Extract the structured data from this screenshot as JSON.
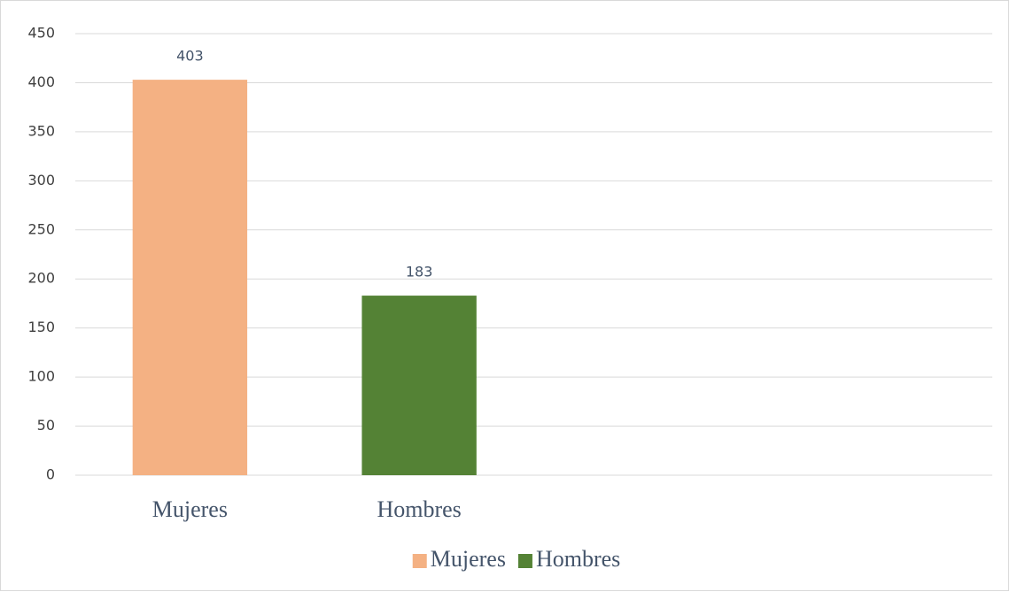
{
  "chart_data": {
    "type": "bar",
    "stacked": true,
    "categories": [
      "Mujeres",
      "Hombres",
      null,
      null
    ],
    "series": [
      {
        "name": "Mujeres",
        "color": "#f4b183",
        "values": [
          403,
          null,
          null,
          null
        ]
      },
      {
        "name": "Hombres",
        "color": "#548235",
        "values": [
          null,
          183,
          null,
          null
        ]
      }
    ],
    "ylim": [
      0,
      450
    ],
    "yticks": [
      0,
      50,
      100,
      150,
      200,
      250,
      300,
      350,
      400,
      450
    ],
    "grid": true,
    "legend": "bottom"
  }
}
